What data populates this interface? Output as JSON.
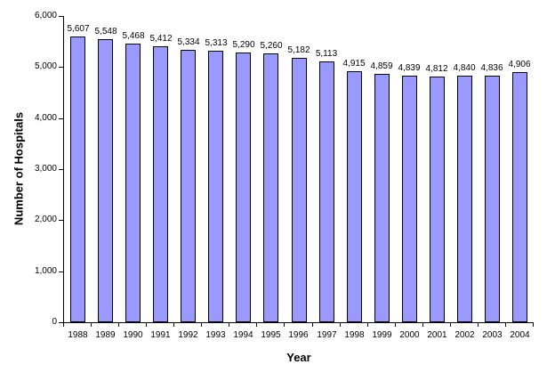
{
  "chart_data": {
    "type": "bar",
    "title": "",
    "xlabel": "Year",
    "ylabel": "Number of Hospitals",
    "categories": [
      "1988",
      "1989",
      "1990",
      "1991",
      "1992",
      "1993",
      "1994",
      "1995",
      "1996",
      "1997",
      "1998",
      "1999",
      "2000",
      "2001",
      "2002",
      "2003",
      "2004"
    ],
    "values": [
      5607,
      5548,
      5468,
      5412,
      5334,
      5313,
      5290,
      5260,
      5182,
      5113,
      4915,
      4859,
      4839,
      4812,
      4840,
      4836,
      4906
    ],
    "value_labels": [
      "5,607",
      "5,548",
      "5,468",
      "5,412",
      "5,334",
      "5,313",
      "5,290",
      "5,260",
      "5,182",
      "5,113",
      "4,915",
      "4,859",
      "4,839",
      "4,812",
      "4,840",
      "4,836",
      "4,906"
    ],
    "ylim": [
      0,
      6000
    ],
    "ytick_step": 1000,
    "ytick_labels": [
      "0",
      "1,000",
      "2,000",
      "3,000",
      "4,000",
      "5,000",
      "6,000"
    ],
    "grid": false,
    "legend": "none",
    "colors": {
      "bar_fill": "#9999FF",
      "bar_border": "#000000",
      "axis": "#000000",
      "text": "#000000",
      "background": "#FFFFFF"
    }
  }
}
